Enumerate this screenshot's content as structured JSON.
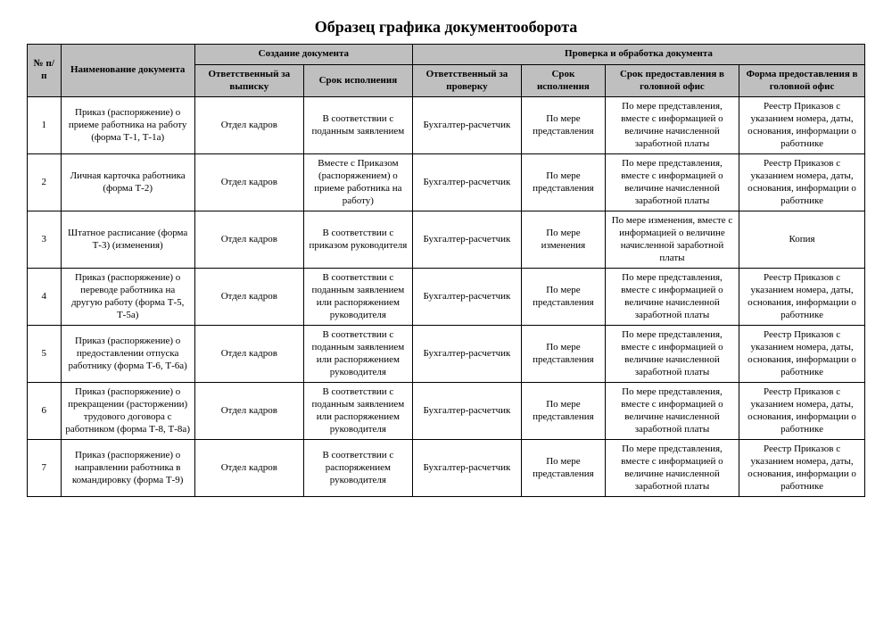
{
  "title": "Образец графика документооборота",
  "table": {
    "type": "table",
    "background_color": "#ffffff",
    "header_bg": "#bfbfbf",
    "border_color": "#000000",
    "font_family": "Times New Roman",
    "header_fontsize": 11,
    "cell_fontsize": 11,
    "title_fontsize": 18,
    "columns": {
      "num": "№ п/п",
      "name": "Наименование документа",
      "group_create": "Создание документа",
      "group_check": "Проверка и обработка документа",
      "resp_issue": "Ответственный за выписку",
      "term_issue": "Срок исполнения",
      "resp_check": "Ответственный за проверку",
      "term_check": "Срок исполнения",
      "term_ho": "Срок предоставления в головной офис",
      "form_ho": "Форма предоставления в головной офис"
    },
    "rows": [
      {
        "num": "1",
        "name": "Приказ (распоряжение) о приеме работника на работу (форма Т-1, Т-1а)",
        "resp_issue": "Отдел кадров",
        "term_issue": "В соответствии с поданным заявлением",
        "resp_check": "Бухгалтер-расчетчик",
        "term_check": "По мере представления",
        "term_ho": "По мере представления, вместе с информацией о величине начисленной заработной платы",
        "form_ho": "Реестр Приказов с указанием номера, даты, основания, информации о работнике"
      },
      {
        "num": "2",
        "name": "Личная карточка работника (форма Т-2)",
        "resp_issue": "Отдел кадров",
        "term_issue": "Вместе с Приказом (распоряжением) о приеме работника на работу)",
        "resp_check": "Бухгалтер-расчетчик",
        "term_check": "По мере представления",
        "term_ho": "По мере представления, вместе с информацией о величине начисленной заработной платы",
        "form_ho": "Реестр Приказов с указанием номера, даты, основания, информации о работнике"
      },
      {
        "num": "3",
        "name": "Штатное расписание (форма Т-3) (изменения)",
        "resp_issue": "Отдел кадров",
        "term_issue": "В соответствии с приказом руководителя",
        "resp_check": "Бухгалтер-расчетчик",
        "term_check": "По мере изменения",
        "term_ho": "По мере изменения, вместе с информацией о величине начисленной заработной платы",
        "form_ho": "Копия"
      },
      {
        "num": "4",
        "name": "Приказ (распоряжение) о переводе работника на другую работу (форма Т-5, Т-5а)",
        "resp_issue": "Отдел кадров",
        "term_issue": "В соответствии с поданным заявлением или распоряжением руководителя",
        "resp_check": "Бухгалтер-расчетчик",
        "term_check": "По мере представления",
        "term_ho": "По мере представления, вместе с информацией о величине начисленной заработной платы",
        "form_ho": "Реестр Приказов с указанием номера, даты, основания, информации о работнике"
      },
      {
        "num": "5",
        "name": "Приказ (распоряжение) о предоставлении отпуска работнику (форма Т-6, Т-6а)",
        "resp_issue": "Отдел кадров",
        "term_issue": "В соответствии с поданным заявлением или распоряжением руководителя",
        "resp_check": "Бухгалтер-расчетчик",
        "term_check": "По мере представления",
        "term_ho": "По мере представления, вместе с информацией о величине начисленной заработной платы",
        "form_ho": "Реестр Приказов с указанием номера, даты, основания, информации о работнике"
      },
      {
        "num": "6",
        "name": "Приказ (распоряжение) о прекращении (расторжении) трудового договора с работником (форма Т-8, Т-8а)",
        "resp_issue": "Отдел кадров",
        "term_issue": "В соответствии с поданным заявлением или распоряжением руководителя",
        "resp_check": "Бухгалтер-расчетчик",
        "term_check": "По мере представления",
        "term_ho": "По мере представления, вместе с информацией о величине начисленной заработной платы",
        "form_ho": "Реестр Приказов с указанием номера, даты, основания, информации о работнике"
      },
      {
        "num": "7",
        "name": "Приказ (распоряжение) о направлении работника в командировку (форма Т-9)",
        "resp_issue": "Отдел кадров",
        "term_issue": "В соответствии с распоряжением руководителя",
        "resp_check": "Бухгалтер-расчетчик",
        "term_check": "По мере представления",
        "term_ho": "По мере представления, вместе с информацией о величине начисленной заработной платы",
        "form_ho": "Реестр Приказов с указанием номера, даты, основания, информации о работнике"
      }
    ]
  }
}
